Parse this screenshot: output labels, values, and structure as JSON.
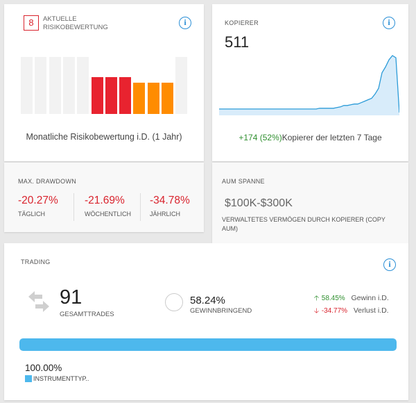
{
  "risk": {
    "score": "8",
    "title": "AKTUELLE RISIKOBEWERTUNG",
    "subtitle": "Monatliche Risikobewertung i.D. (1 Jahr)",
    "info_icon": "info-icon",
    "scale_max": 10,
    "bars": [
      {
        "value": 10,
        "color": "#f2f2f2"
      },
      {
        "value": 10,
        "color": "#f2f2f2"
      },
      {
        "value": 10,
        "color": "#f2f2f2"
      },
      {
        "value": 10,
        "color": "#f2f2f2"
      },
      {
        "value": 10,
        "color": "#f2f2f2"
      },
      {
        "value": 6.5,
        "color": "#e8232f"
      },
      {
        "value": 6.5,
        "color": "#e8232f"
      },
      {
        "value": 6.5,
        "color": "#e8232f"
      },
      {
        "value": 5.5,
        "color": "#ff8c00"
      },
      {
        "value": 5.5,
        "color": "#ff8c00"
      },
      {
        "value": 5.5,
        "color": "#ff8c00"
      },
      {
        "value": 10,
        "color": "#f2f2f2"
      }
    ]
  },
  "drawdown": {
    "title": "MAX. DRAWDOWN",
    "items": [
      {
        "value": "-20.27%",
        "label": "TÄGLICH"
      },
      {
        "value": "-21.69%",
        "label": "WÖCHENTLICH"
      },
      {
        "value": "-34.78%",
        "label": "JÄHRLICH"
      }
    ]
  },
  "copier": {
    "title": "KOPIERER",
    "count": "511",
    "info_icon": "info-icon",
    "change": "+174 (52%)",
    "change_label": "Kopierer der letzten 7 Tage",
    "series": [
      5,
      5,
      5,
      5,
      5,
      5,
      5,
      5,
      5,
      5,
      5,
      5,
      5,
      5,
      5,
      5,
      5,
      5,
      5,
      5,
      5,
      5,
      5,
      5,
      5,
      5,
      5,
      5,
      5,
      6,
      6,
      6,
      6,
      6,
      7,
      8,
      10,
      10,
      11,
      12,
      12,
      14,
      16,
      18,
      20,
      26,
      34,
      56,
      64,
      74,
      80,
      77,
      0
    ]
  },
  "aum": {
    "title": "AUM SPANNE",
    "value": "$100K-$300K",
    "description": "VERWALTETES VERMÖGEN DURCH KOPIERER (COPY AUM)"
  },
  "trading": {
    "title": "TRADING",
    "info_icon": "info-icon",
    "total": "91",
    "total_label": "GESAMTTRADES",
    "win_rate": "58.24%",
    "win_label": "GEWINNBRINGEND",
    "gain_value": "58.45%",
    "gain_label": "Gewinn i.D.",
    "loss_value": "-34.77%",
    "loss_label": "Verlust i.D.",
    "instrument_pct": "100.00%",
    "instrument_fraction": 1,
    "instrument_label": "INSTRUMENTTYP..",
    "instrument_color": "#4db8ed"
  }
}
